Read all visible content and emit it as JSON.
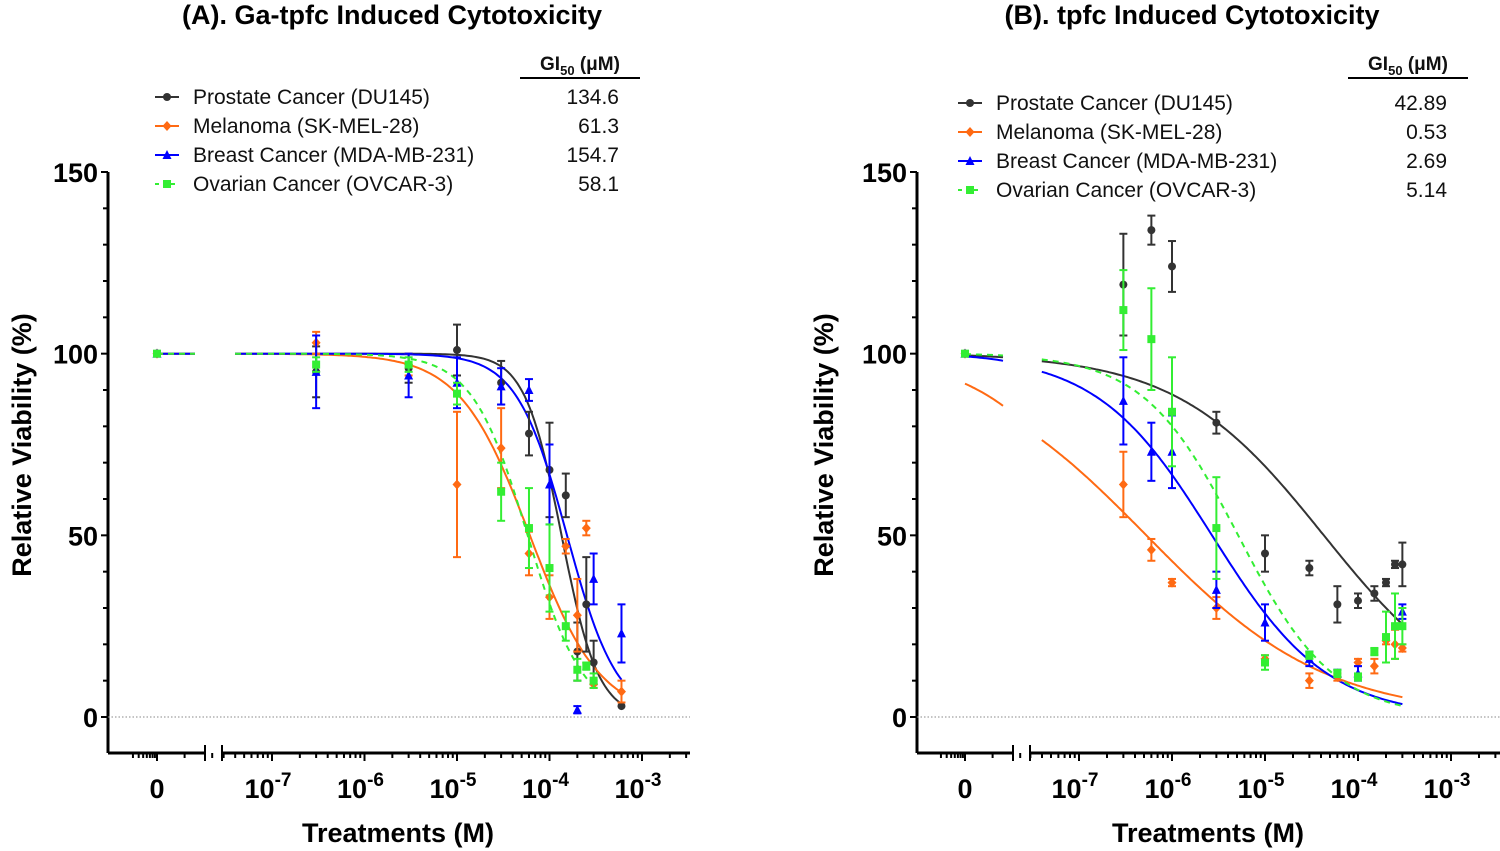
{
  "chart_data": [
    {
      "type": "line",
      "title": "(A). Ga-tpfc Induced Cytotoxicity",
      "xlabel": "Treatments (M)",
      "ylabel": "Relative Viability (%)",
      "xscale": "log (with broken axis for 0 control)",
      "xlim": [
        1e-08,
        0.004
      ],
      "ylim": [
        -20,
        150
      ],
      "yticks": [
        0,
        50,
        100,
        150
      ],
      "ytick_labels": [
        "0",
        "50",
        "100",
        "150"
      ],
      "xtick_labels": [
        {
          "base": "0",
          "exp": ""
        },
        {
          "base": "10",
          "exp": "-7"
        },
        {
          "base": "10",
          "exp": "-6"
        },
        {
          "base": "10",
          "exp": "-5"
        },
        {
          "base": "10",
          "exp": "-4"
        },
        {
          "base": "10",
          "exp": "-3"
        }
      ],
      "legend_position": "top",
      "gi50_header": {
        "main": "GI",
        "sub": "50",
        "unit": " (μM)"
      },
      "series": [
        {
          "name": "Prostate Cancer (DU145)",
          "gi50": "134.6",
          "color": "#333333",
          "marker": "circle",
          "dash": false,
          "fit": {
            "top": 100,
            "bottom": 0,
            "ic50": 0.000135,
            "hill": 2.2
          },
          "points": [
            {
              "x": 0,
              "y": 100,
              "err": 0
            },
            {
              "x": 3e-07,
              "y": 95,
              "err": 7
            },
            {
              "x": 3e-06,
              "y": 96,
              "err": 4
            },
            {
              "x": 1e-05,
              "y": 101,
              "err": 7
            },
            {
              "x": 3e-05,
              "y": 92,
              "err": 6
            },
            {
              "x": 6e-05,
              "y": 78,
              "err": 6
            },
            {
              "x": 0.0001,
              "y": 68,
              "err": 13
            },
            {
              "x": 0.00015,
              "y": 61,
              "err": 6
            },
            {
              "x": 0.0002,
              "y": 18,
              "err": 8
            },
            {
              "x": 0.00025,
              "y": 31,
              "err": 13
            },
            {
              "x": 0.0003,
              "y": 15,
              "err": 6
            },
            {
              "x": 0.0006,
              "y": 3,
              "err": 0
            }
          ]
        },
        {
          "name": "Melanoma (SK-MEL-28)",
          "gi50": "61.3",
          "color": "#FF6A13",
          "marker": "diamond",
          "dash": false,
          "fit": {
            "top": 100,
            "bottom": 0,
            "ic50": 6.13e-05,
            "hill": 1.15
          },
          "points": [
            {
              "x": 0,
              "y": 100,
              "err": 0
            },
            {
              "x": 3e-07,
              "y": 103,
              "err": 3
            },
            {
              "x": 3e-06,
              "y": 97,
              "err": 3
            },
            {
              "x": 1e-05,
              "y": 64,
              "err": 20
            },
            {
              "x": 3e-05,
              "y": 74,
              "err": 11
            },
            {
              "x": 6e-05,
              "y": 45,
              "err": 6
            },
            {
              "x": 0.0001,
              "y": 33,
              "err": 6
            },
            {
              "x": 0.00015,
              "y": 47,
              "err": 2
            },
            {
              "x": 0.0002,
              "y": 28,
              "err": 10
            },
            {
              "x": 0.00025,
              "y": 52,
              "err": 2
            },
            {
              "x": 0.0003,
              "y": 9,
              "err": 1
            },
            {
              "x": 0.0006,
              "y": 7,
              "err": 3
            }
          ]
        },
        {
          "name": "Breast Cancer (MDA-MB-231)",
          "gi50": "154.7",
          "color": "#0000FF",
          "marker": "triangle",
          "dash": false,
          "fit": {
            "top": 100,
            "bottom": 0,
            "ic50": 0.0001547,
            "hill": 1.6
          },
          "points": [
            {
              "x": 0,
              "y": 100,
              "err": 0
            },
            {
              "x": 3e-07,
              "y": 95,
              "err": 10
            },
            {
              "x": 3e-06,
              "y": 94,
              "err": 6
            },
            {
              "x": 1e-05,
              "y": 92,
              "err": 7
            },
            {
              "x": 3e-05,
              "y": 91,
              "err": 5
            },
            {
              "x": 6e-05,
              "y": 90,
              "err": 3
            },
            {
              "x": 0.0001,
              "y": 64,
              "err": 11
            },
            {
              "x": 0.0002,
              "y": 2,
              "err": 1
            },
            {
              "x": 0.0003,
              "y": 38,
              "err": 7
            },
            {
              "x": 0.0006,
              "y": 23,
              "err": 8
            }
          ]
        },
        {
          "name": "Ovarian Cancer (OVCAR-3)",
          "gi50": "58.1",
          "color": "#33EE33",
          "marker": "square",
          "dash": true,
          "fit": {
            "top": 100,
            "bottom": 0,
            "ic50": 5.81e-05,
            "hill": 1.45
          },
          "points": [
            {
              "x": 0,
              "y": 100,
              "err": 0
            },
            {
              "x": 3e-07,
              "y": 97,
              "err": 2
            },
            {
              "x": 3e-06,
              "y": 97,
              "err": 2
            },
            {
              "x": 1e-05,
              "y": 89,
              "err": 3
            },
            {
              "x": 3e-05,
              "y": 62,
              "err": 8
            },
            {
              "x": 6e-05,
              "y": 52,
              "err": 11
            },
            {
              "x": 0.0001,
              "y": 41,
              "err": 12
            },
            {
              "x": 0.00015,
              "y": 25,
              "err": 4
            },
            {
              "x": 0.0002,
              "y": 13,
              "err": 3
            },
            {
              "x": 0.00025,
              "y": 14,
              "err": 1
            },
            {
              "x": 0.0003,
              "y": 10,
              "err": 2
            }
          ]
        }
      ]
    },
    {
      "type": "line",
      "title": "(B). tpfc Induced Cytotoxicity",
      "xlabel": "Treatments (M)",
      "ylabel": "Relative Viability (%)",
      "xscale": "log (with broken axis for 0 control)",
      "xlim": [
        1e-08,
        0.004
      ],
      "ylim": [
        -20,
        150
      ],
      "yticks": [
        0,
        50,
        100,
        150
      ],
      "ytick_labels": [
        "0",
        "50",
        "100",
        "150"
      ],
      "xtick_labels": [
        {
          "base": "0",
          "exp": ""
        },
        {
          "base": "10",
          "exp": "-7"
        },
        {
          "base": "10",
          "exp": "-6"
        },
        {
          "base": "10",
          "exp": "-5"
        },
        {
          "base": "10",
          "exp": "-4"
        },
        {
          "base": "10",
          "exp": "-3"
        }
      ],
      "legend_position": "top",
      "gi50_header": {
        "main": "GI",
        "sub": "50",
        "unit": " (μM)"
      },
      "series": [
        {
          "name": "Prostate Cancer (DU145)",
          "gi50": "42.89",
          "color": "#333333",
          "marker": "circle",
          "dash": false,
          "fit": {
            "top": 100,
            "bottom": 0,
            "ic50": 4.289e-05,
            "hill": 0.55
          },
          "points": [
            {
              "x": 0,
              "y": 100,
              "err": 0
            },
            {
              "x": 3e-07,
              "y": 119,
              "err": 14
            },
            {
              "x": 6e-07,
              "y": 134,
              "err": 4
            },
            {
              "x": 1e-06,
              "y": 124,
              "err": 7
            },
            {
              "x": 3e-06,
              "y": 81,
              "err": 3
            },
            {
              "x": 1e-05,
              "y": 45,
              "err": 5
            },
            {
              "x": 3e-05,
              "y": 41,
              "err": 2
            },
            {
              "x": 6e-05,
              "y": 31,
              "err": 5
            },
            {
              "x": 0.0001,
              "y": 32,
              "err": 2
            },
            {
              "x": 0.00015,
              "y": 34,
              "err": 2
            },
            {
              "x": 0.0002,
              "y": 37,
              "err": 1
            },
            {
              "x": 0.00025,
              "y": 42,
              "err": 1
            },
            {
              "x": 0.0003,
              "y": 42,
              "err": 6
            }
          ]
        },
        {
          "name": "Melanoma (SK-MEL-28)",
          "gi50": "0.53",
          "color": "#FF6A13",
          "marker": "diamond",
          "dash": false,
          "fit": {
            "top": 100,
            "bottom": 0,
            "ic50": 5.3e-07,
            "hill": 0.45
          },
          "points": [
            {
              "x": 0,
              "y": 100,
              "err": 0
            },
            {
              "x": 3e-07,
              "y": 64,
              "err": 9
            },
            {
              "x": 6e-07,
              "y": 46,
              "err": 3
            },
            {
              "x": 1e-06,
              "y": 37,
              "err": 1
            },
            {
              "x": 3e-06,
              "y": 30,
              "err": 3
            },
            {
              "x": 1e-05,
              "y": 16,
              "err": 1
            },
            {
              "x": 3e-05,
              "y": 10,
              "err": 2
            },
            {
              "x": 6e-05,
              "y": 11,
              "err": 1
            },
            {
              "x": 0.0001,
              "y": 15,
              "err": 1
            },
            {
              "x": 0.00015,
              "y": 14,
              "err": 2
            },
            {
              "x": 0.0002,
              "y": 21,
              "err": 1
            },
            {
              "x": 0.00025,
              "y": 20,
              "err": 4
            },
            {
              "x": 0.0003,
              "y": 19,
              "err": 1
            }
          ]
        },
        {
          "name": "Breast Cancer (MDA-MB-231)",
          "gi50": "2.69",
          "color": "#0000FF",
          "marker": "triangle",
          "dash": false,
          "fit": {
            "top": 100,
            "bottom": 0,
            "ic50": 2.69e-06,
            "hill": 0.7
          },
          "points": [
            {
              "x": 0,
              "y": 100,
              "err": 0
            },
            {
              "x": 3e-07,
              "y": 87,
              "err": 12
            },
            {
              "x": 6e-07,
              "y": 73,
              "err": 8
            },
            {
              "x": 1e-06,
              "y": 73,
              "err": 10
            },
            {
              "x": 3e-06,
              "y": 35,
              "err": 5
            },
            {
              "x": 1e-05,
              "y": 26,
              "err": 5
            },
            {
              "x": 3e-05,
              "y": 16,
              "err": 2
            },
            {
              "x": 6e-05,
              "y": 12,
              "err": 1
            },
            {
              "x": 0.0001,
              "y": 12,
              "err": 2
            },
            {
              "x": 0.0003,
              "y": 29,
              "err": 2
            }
          ]
        },
        {
          "name": "Ovarian Cancer (OVCAR-3)",
          "gi50": "5.14",
          "color": "#33EE33",
          "marker": "square",
          "dash": true,
          "fit": {
            "top": 100,
            "bottom": 0,
            "ic50": 5.14e-06,
            "hill": 0.85
          },
          "points": [
            {
              "x": 0,
              "y": 100,
              "err": 0
            },
            {
              "x": 3e-07,
              "y": 112,
              "err": 11
            },
            {
              "x": 6e-07,
              "y": 104,
              "err": 14
            },
            {
              "x": 1e-06,
              "y": 84,
              "err": 15
            },
            {
              "x": 3e-06,
              "y": 52,
              "err": 14
            },
            {
              "x": 1e-05,
              "y": 15,
              "err": 2
            },
            {
              "x": 3e-05,
              "y": 17,
              "err": 1
            },
            {
              "x": 6e-05,
              "y": 12,
              "err": 1
            },
            {
              "x": 0.0001,
              "y": 11,
              "err": 1
            },
            {
              "x": 0.00015,
              "y": 18,
              "err": 1
            },
            {
              "x": 0.0002,
              "y": 22,
              "err": 7
            },
            {
              "x": 0.00025,
              "y": 25,
              "err": 9
            },
            {
              "x": 0.0003,
              "y": 25,
              "err": 5
            }
          ]
        }
      ]
    }
  ]
}
